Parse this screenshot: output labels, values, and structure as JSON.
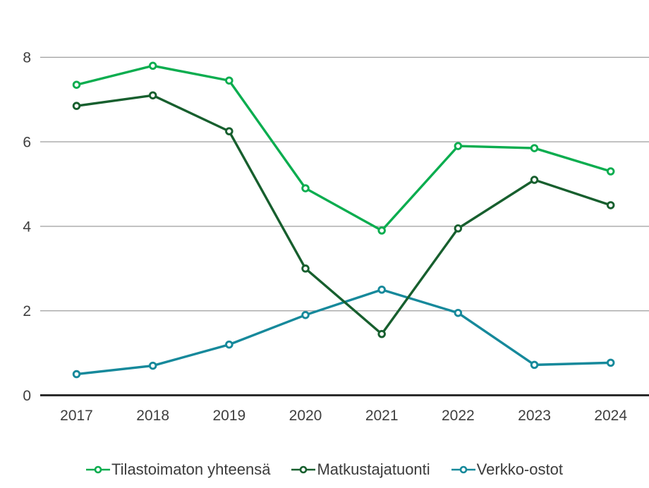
{
  "chart_data": {
    "type": "line",
    "title": "",
    "xlabel": "",
    "ylabel": "",
    "categories": [
      "2017",
      "2018",
      "2019",
      "2020",
      "2021",
      "2022",
      "2023",
      "2024"
    ],
    "y_ticks": [
      0,
      2,
      4,
      6,
      8
    ],
    "ylim": [
      0,
      8.4
    ],
    "grid": "horizontal",
    "legend_position": "bottom",
    "marker_style": "open-circle",
    "series": [
      {
        "name": "Tilastoimaton yhteensä",
        "color": "#0BAD4F",
        "values": [
          7.35,
          7.8,
          7.45,
          4.9,
          3.9,
          5.9,
          5.85,
          5.3
        ]
      },
      {
        "name": "Matkustajatuonti",
        "color": "#175F2E",
        "values": [
          6.85,
          7.1,
          6.25,
          3.0,
          1.45,
          3.95,
          5.1,
          4.5
        ]
      },
      {
        "name": "Verkko-ostot",
        "color": "#16899B",
        "values": [
          0.5,
          0.7,
          1.2,
          1.9,
          2.5,
          1.95,
          0.72,
          0.77
        ]
      }
    ]
  },
  "colors": {
    "gridline": "#A6A6A6",
    "axis_line": "#2B2B2B",
    "tick_label": "#3F3F3F",
    "background": "#FFFFFF"
  }
}
